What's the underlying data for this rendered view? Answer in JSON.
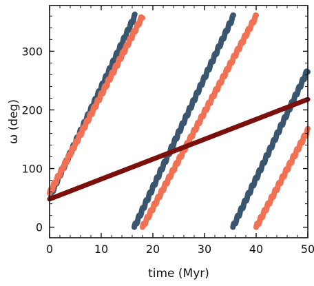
{
  "chart_data": {
    "type": "line",
    "title": "",
    "xlabel": "time (Myr)",
    "ylabel": "ω (deg)",
    "xlim": [
      0,
      50
    ],
    "ylim": [
      -18,
      378
    ],
    "xticks": [
      0,
      10,
      20,
      30,
      40,
      50
    ],
    "yticks": [
      0,
      100,
      200,
      300
    ],
    "grid": false,
    "legend": "none",
    "ticks_direction": "in",
    "colors": {
      "blue": "#3a566e",
      "orange": "#f07154",
      "darkred": "#7a0f0c",
      "axis": "#111111"
    },
    "series": [
      {
        "color": "#3a566e",
        "style": "wavy-segments",
        "segments": [
          {
            "x": [
              0.2,
              16.5
            ],
            "y": [
              55,
              360
            ]
          },
          {
            "x": [
              16.4,
              35.6
            ],
            "y": [
              0,
              360
            ]
          },
          {
            "x": [
              35.5,
              50.0
            ],
            "y": [
              0,
              268
            ]
          }
        ]
      },
      {
        "color": "#f07154",
        "style": "wavy-segments",
        "segments": [
          {
            "x": [
              0.0,
              18.0
            ],
            "y": [
              58,
              360
            ]
          },
          {
            "x": [
              18.0,
              40.0
            ],
            "y": [
              0,
              360
            ]
          },
          {
            "x": [
              40.0,
              50.0
            ],
            "y": [
              0,
              165
            ]
          }
        ]
      },
      {
        "color": "#7a0f0c",
        "style": "straight",
        "segments": [
          {
            "x": [
              0.0,
              50.0
            ],
            "y": [
              48,
              218
            ]
          }
        ]
      }
    ]
  }
}
